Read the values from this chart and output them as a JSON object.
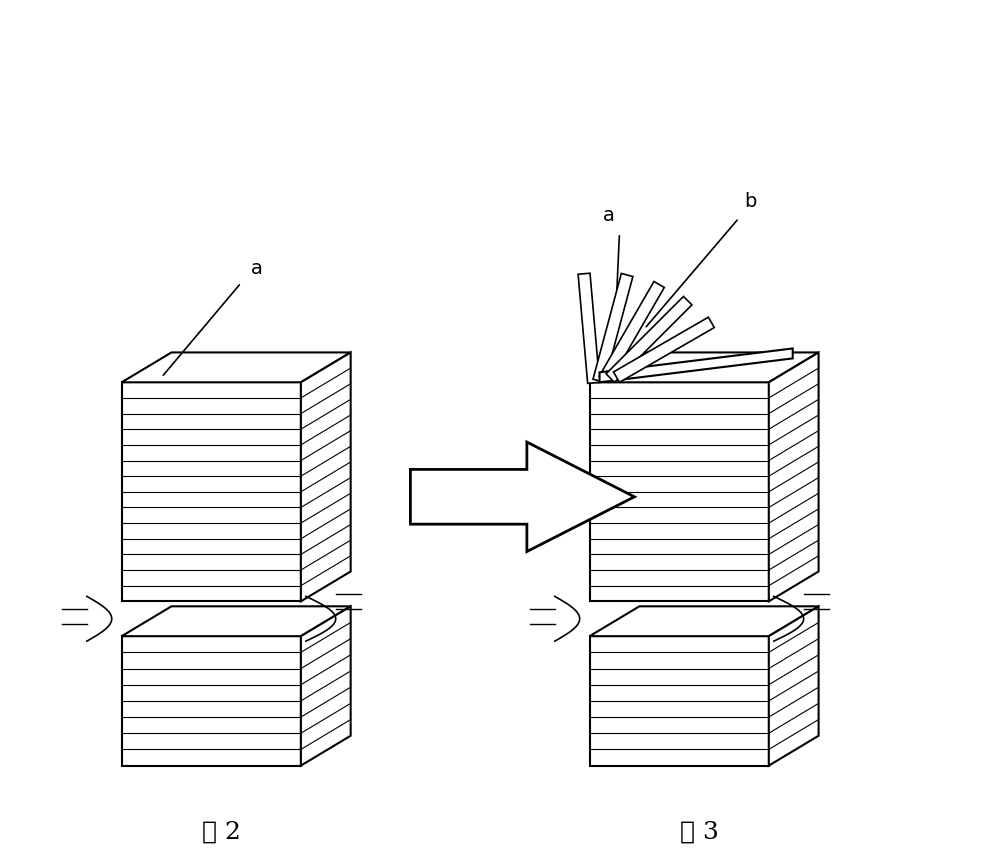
{
  "bg_color": "#ffffff",
  "line_color": "#000000",
  "hatch_color": "#000000",
  "fig_width": 10.0,
  "fig_height": 8.49,
  "label_a_fig2": "a",
  "label_a_fig3": "a",
  "label_b_fig3": "b",
  "caption_fig2": "图 2",
  "caption_fig3": "图 3",
  "arrow_color": "#000000"
}
